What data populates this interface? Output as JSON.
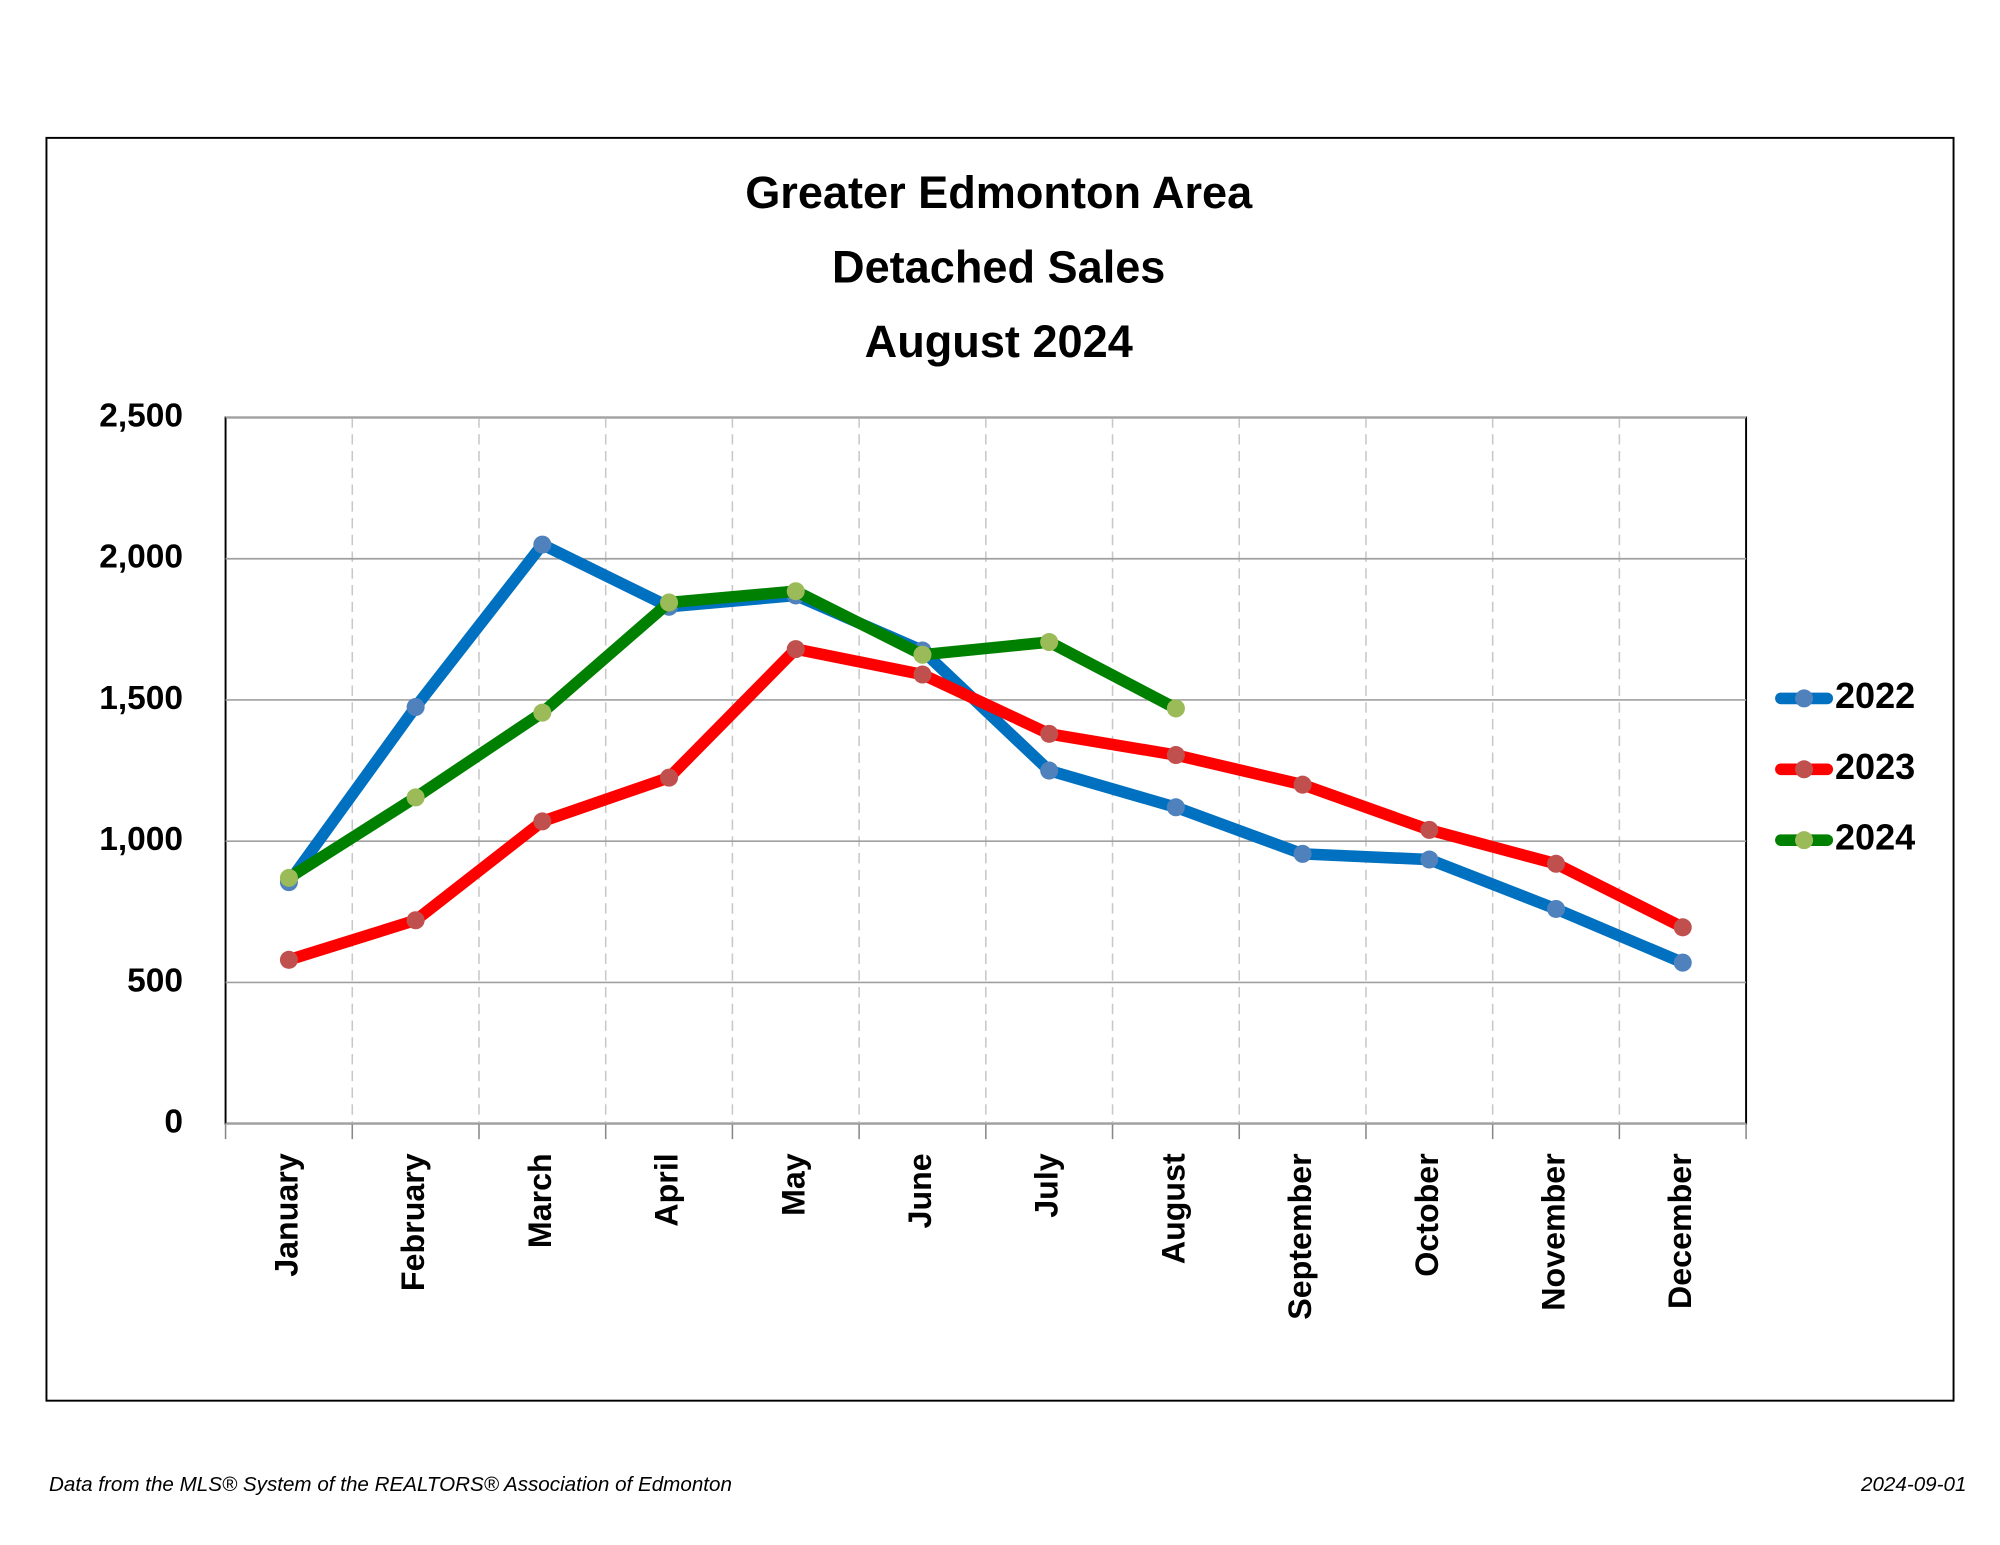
{
  "chart_data": {
    "type": "line",
    "title": [
      "Greater Edmonton Area",
      "Detached Sales",
      "August 2024"
    ],
    "categories": [
      "January",
      "February",
      "March",
      "April",
      "May",
      "June",
      "July",
      "August",
      "September",
      "October",
      "November",
      "December"
    ],
    "series": [
      {
        "name": "2022",
        "color": "#0070c0",
        "marker_color": "#4f81bd",
        "values": [
          855,
          1475,
          2050,
          1830,
          1870,
          1675,
          1250,
          1120,
          955,
          935,
          760,
          570
        ]
      },
      {
        "name": "2023",
        "color": "#ff0000",
        "marker_color": "#c0504d",
        "values": [
          580,
          720,
          1070,
          1225,
          1680,
          1590,
          1380,
          1305,
          1200,
          1040,
          920,
          695
        ]
      },
      {
        "name": "2024",
        "color": "#008000",
        "marker_color": "#9bbb59",
        "values": [
          870,
          1155,
          1455,
          1845,
          1885,
          1660,
          1705,
          1470,
          null,
          null,
          null,
          null
        ]
      }
    ],
    "ylim": [
      0,
      2500
    ],
    "yticks": [
      0,
      500,
      {
        "value": 1000,
        "label": "1,000"
      },
      {
        "value": 1500,
        "label": "1,500"
      },
      {
        "value": 2000,
        "label": "2,000"
      },
      {
        "value": 2500,
        "label": "2,500"
      }
    ],
    "grid": true,
    "legend": "right",
    "source": "Data from the MLS® System of the REALTORS® Association of Edmonton",
    "date": "2024-09-01"
  }
}
